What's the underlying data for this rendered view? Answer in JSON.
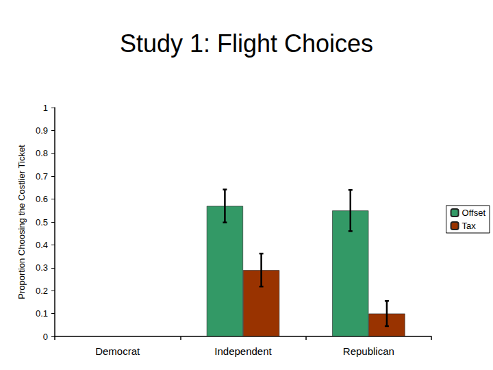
{
  "chart_data": {
    "type": "bar",
    "title": "Study 1: Flight Choices",
    "y_label": "Proportion Choosing the Costlier Ticket",
    "categories": [
      "Democrat",
      "Independent",
      "Republican"
    ],
    "series": [
      {
        "name": "Offset",
        "color": "#339966",
        "values": [
          null,
          0.57,
          0.55
        ],
        "errors": [
          null,
          0.072,
          0.09
        ]
      },
      {
        "name": "Tax",
        "color": "#993300",
        "values": [
          null,
          0.29,
          0.1
        ],
        "errors": [
          null,
          0.072,
          0.055
        ]
      }
    ],
    "ylim": [
      0,
      1
    ],
    "yticks": [
      0,
      0.1,
      0.2,
      0.3,
      0.4,
      0.5,
      0.6,
      0.7,
      0.8,
      0.9,
      1
    ],
    "grid": false,
    "legend": "right"
  }
}
